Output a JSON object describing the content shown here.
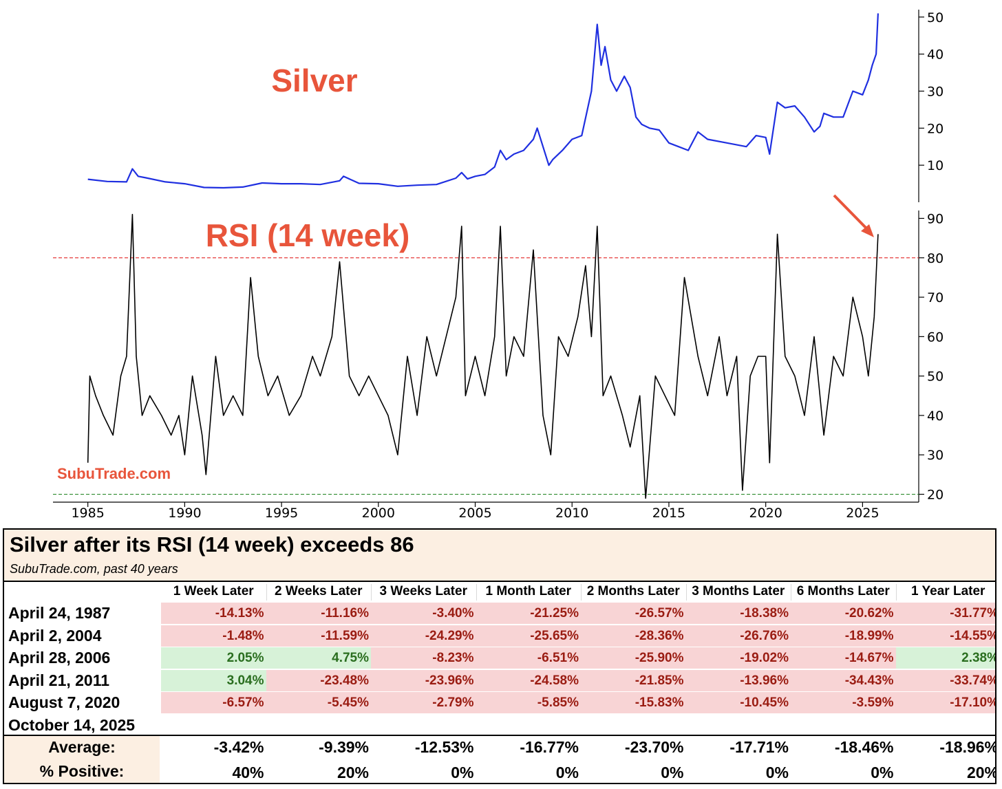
{
  "chart_data": [
    {
      "type": "line",
      "title": "Silver",
      "series": [
        {
          "x": [
            1985.0,
            1986.0,
            1987.0,
            1987.3,
            1987.6,
            1988.0,
            1989.0,
            1990.0,
            1991.0,
            1992.0,
            1993.0,
            1994.0,
            1995.0,
            1996.0,
            1997.0,
            1998.0,
            1998.2,
            1999.0,
            2000.0,
            2001.0,
            2002.0,
            2003.0,
            2004.0,
            2004.3,
            2004.6,
            2005.0,
            2005.5,
            2006.0,
            2006.3,
            2006.6,
            2007.0,
            2007.5,
            2008.0,
            2008.2,
            2008.8,
            2009.0,
            2009.5,
            2010.0,
            2010.5,
            2011.0,
            2011.3,
            2011.5,
            2011.7,
            2012.0,
            2012.3,
            2012.7,
            2013.0,
            2013.3,
            2013.6,
            2014.0,
            2014.5,
            2015.0,
            2015.5,
            2016.0,
            2016.5,
            2017.0,
            2018.0,
            2019.0,
            2019.5,
            2020.0,
            2020.2,
            2020.6,
            2021.0,
            2021.5,
            2022.0,
            2022.5,
            2022.8,
            2023.0,
            2023.5,
            2024.0,
            2024.5,
            2025.0,
            2025.3,
            2025.5,
            2025.7,
            2025.8
          ],
          "y": [
            6.2,
            5.6,
            5.5,
            9.0,
            7.0,
            6.6,
            5.5,
            5.0,
            4.0,
            3.9,
            4.1,
            5.2,
            5.0,
            5.0,
            4.8,
            5.8,
            7.0,
            5.1,
            5.0,
            4.3,
            4.6,
            4.8,
            6.5,
            8.0,
            6.3,
            7.0,
            7.5,
            9.5,
            14.0,
            11.5,
            13.0,
            14.0,
            17.0,
            20.0,
            10.0,
            11.5,
            14.0,
            17.0,
            18.0,
            30.0,
            48.0,
            37.0,
            42.0,
            33.0,
            30.0,
            34.0,
            31.0,
            23.0,
            21.0,
            20.0,
            19.5,
            16.0,
            15.0,
            14.0,
            19.0,
            17.0,
            16.0,
            15.0,
            18.0,
            17.5,
            13.0,
            27.0,
            25.5,
            26.0,
            23.0,
            19.0,
            20.5,
            24.0,
            23.0,
            23.0,
            30.0,
            29.0,
            33.0,
            37.0,
            40.0,
            51.0
          ]
        }
      ],
      "ylim": [
        0,
        52
      ],
      "yticks": [
        10,
        20,
        30,
        40,
        50
      ],
      "color": "#1f2fe0"
    },
    {
      "type": "line",
      "title": "RSI (14 week)",
      "series": [
        {
          "x": [
            1985.0,
            1985.1,
            1985.4,
            1985.8,
            1986.3,
            1986.7,
            1987.0,
            1987.3,
            1987.5,
            1987.8,
            1988.2,
            1988.8,
            1989.3,
            1989.7,
            1990.0,
            1990.4,
            1990.9,
            1991.1,
            1991.6,
            1992.0,
            1992.5,
            1993.0,
            1993.4,
            1993.8,
            1994.3,
            1994.8,
            1995.4,
            1996.0,
            1996.6,
            1997.0,
            1997.6,
            1998.0,
            1998.5,
            1999.0,
            1999.5,
            2000.0,
            2000.5,
            2001.0,
            2001.5,
            2002.0,
            2002.5,
            2003.0,
            2003.5,
            2004.0,
            2004.3,
            2004.5,
            2005.0,
            2005.5,
            2006.0,
            2006.3,
            2006.6,
            2007.0,
            2007.5,
            2008.0,
            2008.5,
            2008.9,
            2009.3,
            2009.8,
            2010.3,
            2010.7,
            2011.0,
            2011.3,
            2011.6,
            2012.0,
            2012.6,
            2013.0,
            2013.5,
            2013.8,
            2014.3,
            2014.8,
            2015.3,
            2015.8,
            2016.5,
            2017.0,
            2017.6,
            2018.0,
            2018.5,
            2018.8,
            2019.2,
            2019.6,
            2020.0,
            2020.2,
            2020.6,
            2021.0,
            2021.5,
            2022.0,
            2022.5,
            2023.0,
            2023.5,
            2024.0,
            2024.5,
            2025.0,
            2025.3,
            2025.6,
            2025.8
          ],
          "y": [
            28,
            50,
            45,
            40,
            35,
            50,
            55,
            91,
            55,
            40,
            45,
            40,
            35,
            40,
            30,
            50,
            35,
            25,
            55,
            40,
            45,
            40,
            75,
            55,
            45,
            50,
            40,
            45,
            55,
            50,
            60,
            79,
            50,
            45,
            50,
            45,
            40,
            30,
            55,
            40,
            60,
            50,
            60,
            70,
            88,
            45,
            55,
            45,
            60,
            88,
            50,
            60,
            55,
            82,
            40,
            30,
            60,
            55,
            65,
            78,
            60,
            88,
            45,
            50,
            40,
            32,
            45,
            19,
            50,
            45,
            40,
            75,
            55,
            45,
            60,
            45,
            55,
            21,
            50,
            55,
            55,
            28,
            86,
            55,
            50,
            40,
            60,
            35,
            55,
            50,
            70,
            60,
            50,
            65,
            86
          ]
        }
      ],
      "ylim": [
        18,
        92
      ],
      "yticks": [
        20,
        30,
        40,
        50,
        60,
        70,
        80,
        90
      ],
      "overbought_line": 80,
      "oversold_line": 20,
      "color": "#000000"
    }
  ],
  "x_axis": {
    "min": 1983.2,
    "max": 2027.9,
    "ticks": [
      1985,
      1990,
      1995,
      2000,
      2005,
      2010,
      2015,
      2020,
      2025
    ]
  },
  "chart_labels": {
    "silver_title": "Silver",
    "rsi_title": "RSI (14 week)",
    "brand": "SubuTrade.com",
    "accent_color": "#e8553b"
  },
  "table": {
    "title": "Silver after its RSI (14 week) exceeds 86",
    "subtitle": "SubuTrade.com, past 40 years",
    "columns": [
      "1 Week Later",
      "2 Weeks Later",
      "3 Weeks Later",
      "1 Month Later",
      "2 Months Later",
      "3 Months Later",
      "6 Months Later",
      "1 Year Later"
    ],
    "rows": [
      {
        "date": "April 24, 1987",
        "values": [
          "-14.13%",
          "-11.16%",
          "-3.40%",
          "-21.25%",
          "-26.57%",
          "-18.38%",
          "-20.62%",
          "-31.77%"
        ]
      },
      {
        "date": "April 2, 2004",
        "values": [
          "-1.48%",
          "-11.59%",
          "-24.29%",
          "-25.65%",
          "-28.36%",
          "-26.76%",
          "-18.99%",
          "-14.55%"
        ]
      },
      {
        "date": "April 28, 2006",
        "values": [
          "2.05%",
          "4.75%",
          "-8.23%",
          "-6.51%",
          "-25.90%",
          "-19.02%",
          "-14.67%",
          "2.38%"
        ]
      },
      {
        "date": "April 21, 2011",
        "values": [
          "3.04%",
          "-23.48%",
          "-23.96%",
          "-24.58%",
          "-21.85%",
          "-13.96%",
          "-34.43%",
          "-33.74%"
        ]
      },
      {
        "date": "August 7, 2020",
        "values": [
          "-6.57%",
          "-5.45%",
          "-2.79%",
          "-5.85%",
          "-15.83%",
          "-10.45%",
          "-3.59%",
          "-17.10%"
        ]
      },
      {
        "date": "October 14, 2025",
        "values": [
          "",
          "",
          "",
          "",
          "",
          "",
          "",
          ""
        ]
      }
    ],
    "average_label": "Average:",
    "average": [
      "-3.42%",
      "-9.39%",
      "-12.53%",
      "-16.77%",
      "-23.70%",
      "-17.71%",
      "-18.46%",
      "-18.96%"
    ],
    "positive_label": "% Positive:",
    "positive": [
      "40%",
      "20%",
      "0%",
      "0%",
      "0%",
      "0%",
      "0%",
      "20%"
    ]
  }
}
